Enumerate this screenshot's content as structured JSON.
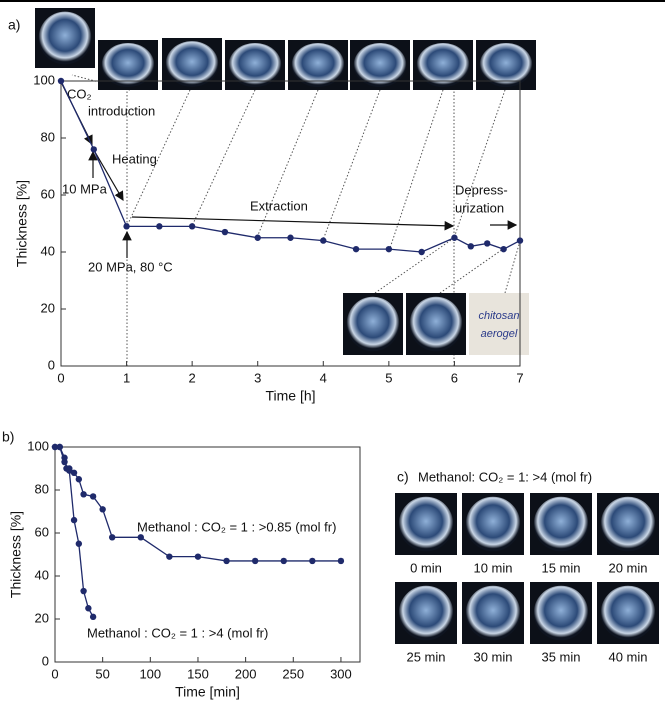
{
  "chart_data": [
    {
      "type": "line",
      "label": "a)",
      "xlabel": "Time [h]",
      "ylabel": "Thickness [%]",
      "x": [
        0,
        0.5,
        1,
        1.5,
        2,
        2.5,
        3,
        3.5,
        4,
        4.5,
        5,
        5.5,
        6,
        6.25,
        6.5,
        6.75,
        7
      ],
      "values": [
        100,
        76,
        49,
        49,
        49,
        47,
        45,
        45,
        44,
        41,
        41,
        40,
        45,
        42,
        43,
        41,
        44
      ],
      "color": "#1f2a6b",
      "xlim": [
        0,
        7
      ],
      "ylim": [
        0,
        100
      ],
      "xticks": [
        0,
        1,
        2,
        3,
        4,
        5,
        6,
        7
      ],
      "yticks": [
        0,
        20,
        40,
        60,
        80,
        100
      ],
      "annotations": [
        "CO₂",
        "introduction",
        "Heating",
        "10 MPa",
        "20 MPa, 80 °C",
        "Extraction",
        "Depress-",
        "urization",
        "chitosan",
        "aerogel"
      ]
    },
    {
      "type": "line",
      "label": "b)",
      "xlabel": "Time [min]",
      "ylabel": "Thickness [%]",
      "xlim": [
        0,
        320
      ],
      "ylim": [
        0,
        100
      ],
      "xticks": [
        0,
        50,
        100,
        150,
        200,
        250,
        300
      ],
      "yticks": [
        0,
        20,
        40,
        60,
        80,
        100
      ],
      "series": [
        {
          "name": "Methanol : CO₂ = 1 : >0.85 (mol fr)",
          "color": "#1f2a6b",
          "x": [
            0,
            5,
            10,
            12,
            15,
            20,
            25,
            30,
            40,
            50,
            60,
            90,
            120,
            150,
            180,
            210,
            240,
            270,
            300
          ],
          "values": [
            100,
            100,
            95,
            90,
            90,
            88,
            85,
            78,
            77,
            71,
            58,
            58,
            49,
            49,
            47,
            47,
            47,
            47,
            47
          ]
        },
        {
          "name": "Methanol : CO₂ = 1 : >4 (mol fr)",
          "color": "#1f2a6b",
          "x": [
            0,
            5,
            10,
            15,
            20,
            25,
            30,
            35,
            40
          ],
          "values": [
            100,
            100,
            93,
            89,
            66,
            55,
            33,
            25,
            21
          ]
        }
      ]
    }
  ],
  "photo_panel": {
    "label": "c)",
    "title": "Methanol: CO₂ = 1: >4 (mol fr)",
    "captions": [
      "0 min",
      "10 min",
      "15 min",
      "20 min",
      "25 min",
      "30 min",
      "35 min",
      "40 min"
    ]
  }
}
